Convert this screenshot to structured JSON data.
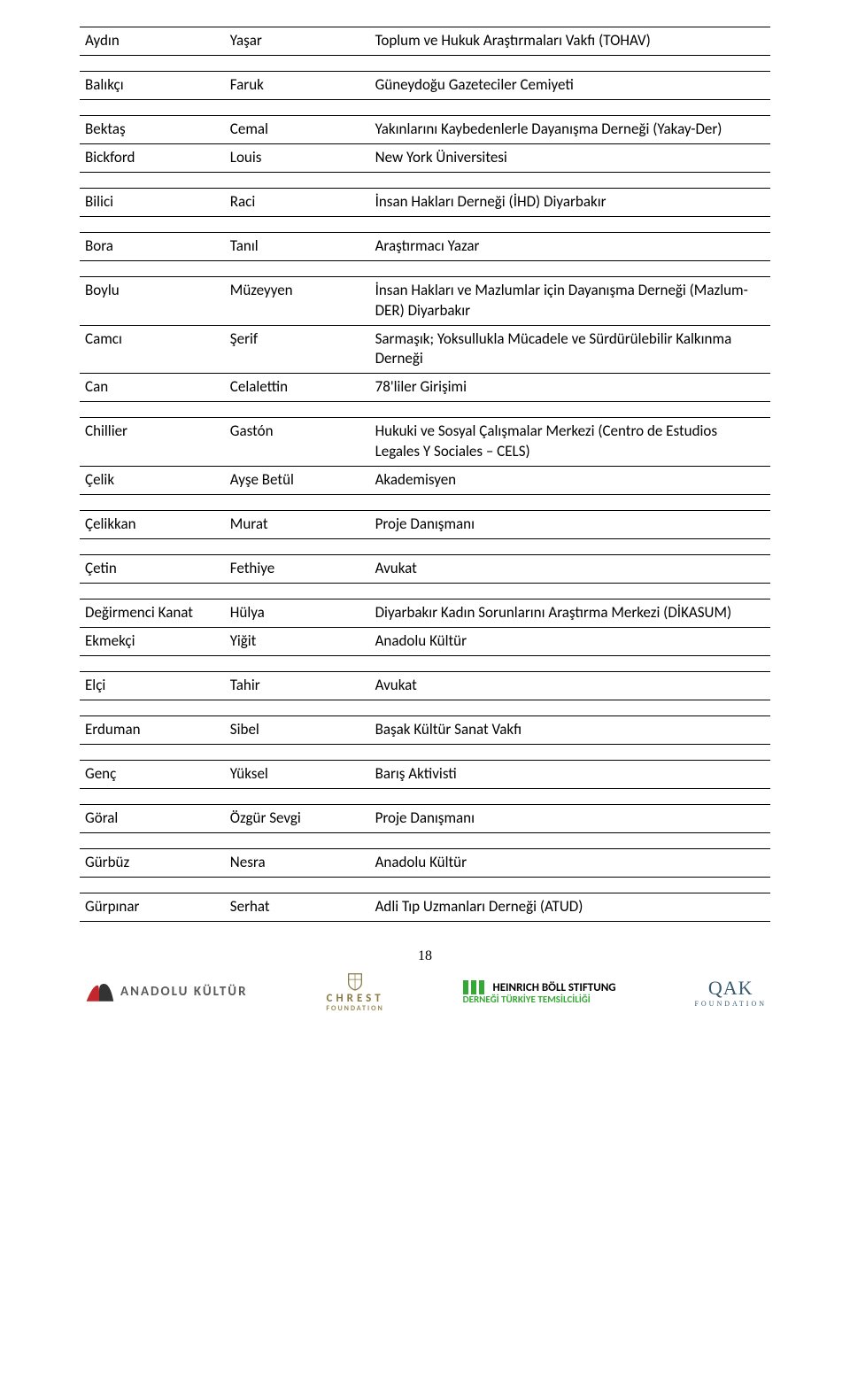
{
  "rows": [
    {
      "c1": "Aydın",
      "c2": "Yaşar",
      "c3": "Toplum ve Hukuk Araştırmaları Vakfı (TOHAV)"
    },
    {
      "spacer": true
    },
    {
      "c1": "Balıkçı",
      "c2": "Faruk",
      "c3": "Güneydoğu Gazeteciler Cemiyeti"
    },
    {
      "spacer": true
    },
    {
      "c1": "Bektaş",
      "c2": "Cemal",
      "c3": "Yakınlarını Kaybedenlerle Dayanışma Derneği (Yakay-Der)"
    },
    {
      "c1": "Bickford",
      "c2": "Louis",
      "c3": "New York Üniversitesi"
    },
    {
      "spacer": true
    },
    {
      "c1": "Bilici",
      "c2": "Raci",
      "c3": "İnsan Hakları Derneği (İHD) Diyarbakır"
    },
    {
      "spacer": true
    },
    {
      "c1": "Bora",
      "c2": "Tanıl",
      "c3": "Araştırmacı Yazar"
    },
    {
      "spacer": true
    },
    {
      "c1": "Boylu",
      "c2": "Müzeyyen",
      "c3": "İnsan Hakları ve Mazlumlar için Dayanışma Derneği (Mazlum-DER) Diyarbakır"
    },
    {
      "c1": "Camcı",
      "c2": "Şerif",
      "c3": "Sarmaşık; Yoksullukla Mücadele ve Sürdürülebilir Kalkınma Derneği"
    },
    {
      "c1": "Can",
      "c2": "Celalettin",
      "c3": "78'liler Girişimi"
    },
    {
      "spacer": true
    },
    {
      "c1": "Chillier",
      "c2": "Gastón",
      "c3": "Hukuki ve Sosyal Çalışmalar Merkezi (Centro de Estudios Legales Y Sociales – CELS)"
    },
    {
      "c1": "Çelik",
      "c2": "Ayşe Betül",
      "c3": "Akademisyen"
    },
    {
      "spacer": true
    },
    {
      "c1": "Çelikkan",
      "c2": "Murat",
      "c3": "Proje Danışmanı"
    },
    {
      "spacer": true
    },
    {
      "c1": "Çetin",
      "c2": "Fethiye",
      "c3": "Avukat"
    },
    {
      "spacer": true
    },
    {
      "c1": "Değirmenci Kanat",
      "c2": "Hülya",
      "c3": "Diyarbakır Kadın Sorunlarını Araştırma Merkezi (DİKASUM)"
    },
    {
      "c1": "Ekmekçi",
      "c2": "Yiğit",
      "c3": "Anadolu Kültür"
    },
    {
      "spacer": true
    },
    {
      "c1": "Elçi",
      "c2": "Tahir",
      "c3": "Avukat"
    },
    {
      "spacer": true
    },
    {
      "c1": "Erduman",
      "c2": "Sibel",
      "c3": "Başak Kültür Sanat Vakfı"
    },
    {
      "spacer": true
    },
    {
      "c1": "Genç",
      "c2": "Yüksel",
      "c3": "Barış Aktivisti"
    },
    {
      "spacer": true
    },
    {
      "c1": "Göral",
      "c2": "Özgür Sevgi",
      "c3": "Proje Danışmanı"
    },
    {
      "spacer": true
    },
    {
      "c1": "Gürbüz",
      "c2": "Nesra",
      "c3": "Anadolu Kültür"
    },
    {
      "spacer": true
    },
    {
      "c1": "Gürpınar",
      "c2": "Serhat",
      "c3": "Adli Tıp Uzmanları Derneği (ATUD)"
    }
  ],
  "page_number": "18",
  "footer": {
    "anadolu": "ANADOLU KÜLTÜR",
    "chrest": {
      "name": "CHREST",
      "sub": "FOUNDATION"
    },
    "boll": {
      "line1": "HEINRICH BÖLL STIFTUNG",
      "line2": "DERNEĞİ TÜRKİYE TEMSİLCİLİĞİ"
    },
    "oak": {
      "name": "QAK",
      "sub": "FOUNDATION"
    }
  },
  "colors": {
    "text": "#000000",
    "border": "#000000",
    "anadolu_red": "#c1272d",
    "anadolu_grey": "#5a5a5a",
    "chrest_gold": "#8a7a46",
    "boll_green": "#35a835",
    "oak_blue": "#395c72"
  }
}
